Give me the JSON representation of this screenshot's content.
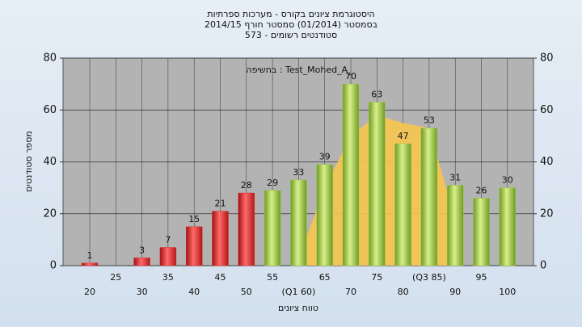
{
  "chart_data": {
    "type": "bar",
    "title": [
      "היסטוגרמת ציונים בקורס - מערכות ספרתיות",
      "בסמסטר  (01/2014)  סמסטר חורף 2014/15",
      "סטודנטים רשומים - 573"
    ],
    "annotation": "בחשיפה : Test_Mohed_A_",
    "x_label": "טווח ציונים",
    "y_label": "מספר סטודנטים",
    "categories": [
      "20",
      "25",
      "30",
      "35",
      "40",
      "45",
      "50",
      "55",
      "(Q1 60)",
      "65",
      "70",
      "75",
      "80",
      "(Q3 85)",
      "90",
      "95",
      "100"
    ],
    "series": [
      {
        "name": "curve",
        "type": "area",
        "color": "#f7c550",
        "values": [
          null,
          null,
          null,
          null,
          null,
          null,
          null,
          null,
          3,
          30,
          50,
          58,
          55,
          53,
          18,
          null,
          null
        ]
      },
      {
        "name": "counts",
        "type": "bar",
        "values": [
          1,
          null,
          3,
          7,
          15,
          21,
          28,
          29,
          33,
          39,
          70,
          63,
          47,
          53,
          31,
          26,
          30
        ],
        "colors": [
          "#e03030",
          "#e03030",
          "#e03030",
          "#e03030",
          "#e03030",
          "#e03030",
          "#e03030",
          "#9cc64a",
          "#9cc64a",
          "#9cc64a",
          "#9cc64a",
          "#9cc64a",
          "#9cc64a",
          "#9cc64a",
          "#9cc64a",
          "#9cc64a",
          "#9cc64a"
        ]
      }
    ],
    "ylim": [
      0,
      80
    ],
    "yticks": [
      0,
      20,
      40,
      60,
      80
    ],
    "y2lim": [
      0,
      80
    ],
    "y2ticks": [
      0,
      20,
      40,
      60,
      80
    ],
    "grid": true
  }
}
